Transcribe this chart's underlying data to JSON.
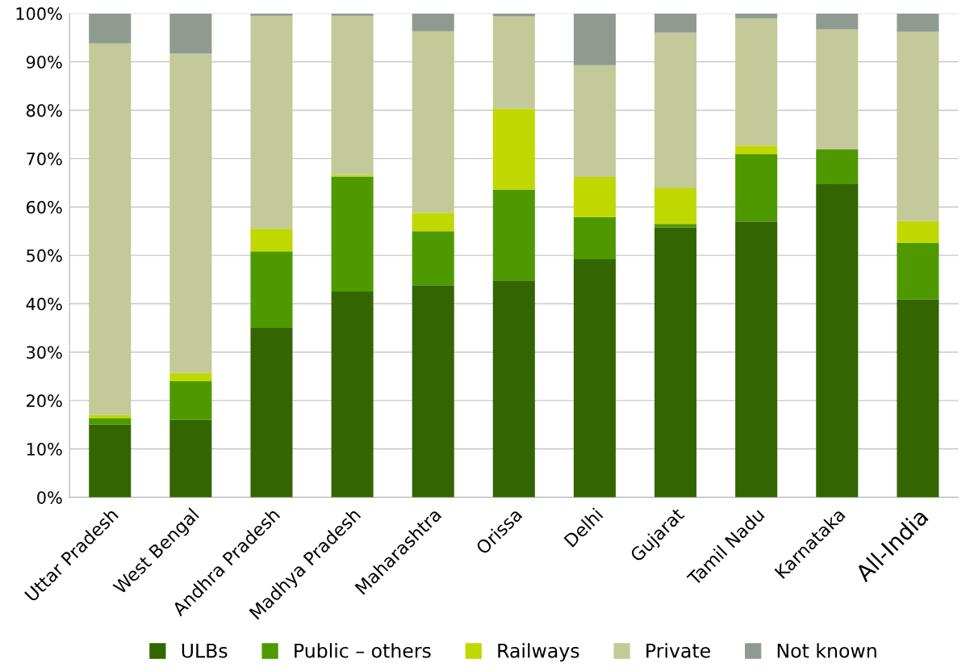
{
  "chart_data": {
    "type": "bar",
    "stacked": true,
    "categories": [
      "Uttar Pradesh",
      "West Bengal",
      "Andhra Pradesh",
      "Madhya Pradesh",
      "Maharashtra",
      "Orissa",
      "Delhi",
      "Gujarat",
      "Tamil Nadu",
      "Karnataka",
      "All-India"
    ],
    "series": [
      {
        "name": "ULBs",
        "color": "#336600",
        "values": [
          15.0,
          16.0,
          35.0,
          42.5,
          43.8,
          44.8,
          49.2,
          55.8,
          57.0,
          64.7,
          40.9
        ]
      },
      {
        "name": "Public – others",
        "color": "#4f9900",
        "values": [
          1.3,
          8.0,
          15.8,
          23.8,
          11.2,
          18.8,
          8.7,
          0.7,
          13.9,
          7.2,
          11.7
        ]
      },
      {
        "name": "Railways",
        "color": "#bfd900",
        "values": [
          0.7,
          1.7,
          4.7,
          0.3,
          3.8,
          16.7,
          8.3,
          7.4,
          1.8,
          0,
          4.5
        ]
      },
      {
        "name": "Private",
        "color": "#c3c998",
        "values": [
          76.8,
          66.0,
          44.0,
          32.9,
          37.5,
          19.1,
          23.1,
          32.1,
          26.3,
          24.8,
          39.1
        ]
      },
      {
        "name": "Not known",
        "color": "#8f9b90",
        "values": [
          6.2,
          8.3,
          0.5,
          0.5,
          3.7,
          0.6,
          10.7,
          4.0,
          1.0,
          3.3,
          3.8
        ]
      }
    ],
    "ylim": [
      0,
      100
    ],
    "yticks": [
      {
        "value": 0,
        "label": "0%"
      },
      {
        "value": 10,
        "label": "10%"
      },
      {
        "value": 20,
        "label": "20%"
      },
      {
        "value": 30,
        "label": "30%"
      },
      {
        "value": 40,
        "label": "40%"
      },
      {
        "value": 50,
        "label": "50%"
      },
      {
        "value": 60,
        "label": "60%"
      },
      {
        "value": 70,
        "label": "70%"
      },
      {
        "value": 80,
        "label": "80%"
      },
      {
        "value": 90,
        "label": "90%"
      },
      {
        "value": 100,
        "label": "100%"
      }
    ],
    "grid": "y",
    "legend": "bottom"
  }
}
